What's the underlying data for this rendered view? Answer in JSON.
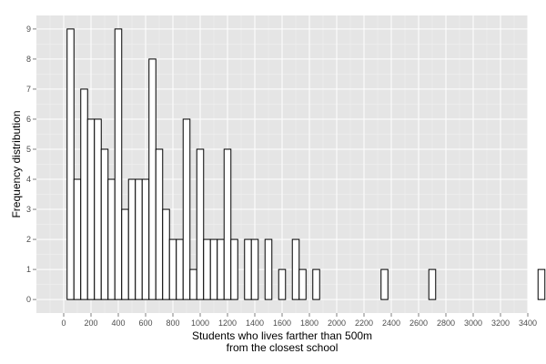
{
  "chart_data": {
    "type": "bar",
    "xlabel_lines": [
      "Students who lives farther than 500m",
      "from the closest school"
    ],
    "ylabel": "Frequency distribution",
    "bin_width": 50,
    "bin_start": -25,
    "values": [
      0,
      9,
      4,
      7,
      6,
      6,
      5,
      4,
      9,
      3,
      4,
      4,
      4,
      8,
      5,
      3,
      2,
      2,
      6,
      1,
      5,
      2,
      2,
      2,
      5,
      2,
      0,
      2,
      2,
      0,
      2,
      0,
      1,
      0,
      2,
      1,
      0,
      1,
      0,
      0,
      0,
      0,
      0,
      0,
      0,
      0,
      0,
      1,
      0,
      0,
      0,
      0,
      0,
      0,
      1,
      0,
      0,
      0,
      0,
      0,
      0,
      0,
      0,
      0,
      0,
      0,
      0,
      0,
      0,
      0,
      1,
      0,
      0
    ],
    "xlim": [
      -200,
      3400
    ],
    "ylim": [
      -0.45,
      9.45
    ],
    "x_ticks": [
      0,
      200,
      400,
      600,
      800,
      1000,
      1200,
      1400,
      1600,
      1800,
      2000,
      2200,
      2400,
      2600,
      2800,
      3000,
      3200,
      3400
    ],
    "y_ticks": [
      0,
      1,
      2,
      3,
      4,
      5,
      6,
      7,
      8,
      9
    ],
    "grid": true,
    "panel_color": "#e5e5e5",
    "grid_color": "#ffffff",
    "bar_fill": "#ffffff",
    "bar_stroke": "#000000"
  }
}
